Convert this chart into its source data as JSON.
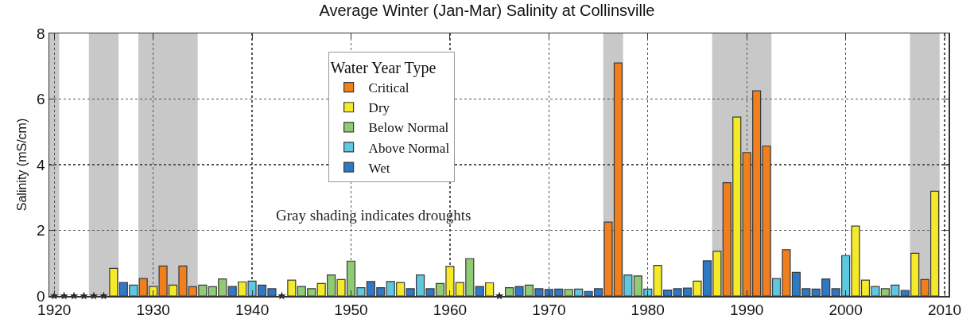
{
  "chart_data": {
    "type": "bar",
    "title": "Average Winter (Jan-Mar) Salinity at Collinsville",
    "ylabel": "Salinity (mS/cm)",
    "legend_title": "Water Year Type",
    "legend": "top",
    "grid": true,
    "xlim": [
      1919.5,
      2010.4
    ],
    "xticks": [
      1920,
      1930,
      1940,
      1950,
      1960,
      1970,
      1980,
      1990,
      2000,
      2010
    ],
    "ylim": [
      0,
      8
    ],
    "yticks": [
      0,
      2,
      4,
      6,
      8
    ],
    "annotations": [
      "Gray shading indicates droughts"
    ],
    "bands": [
      {
        "axis": "x",
        "from": 1919.5,
        "to": 1920.5,
        "color": "#c8c8c8"
      },
      {
        "axis": "x",
        "from": 1923.5,
        "to": 1926.5,
        "color": "#c8c8c8"
      },
      {
        "axis": "x",
        "from": 1928.5,
        "to": 1934.5,
        "color": "#c8c8c8"
      },
      {
        "axis": "x",
        "from": 1975.5,
        "to": 1977.5,
        "color": "#c8c8c8"
      },
      {
        "axis": "x",
        "from": 1986.5,
        "to": 1992.5,
        "color": "#c8c8c8"
      },
      {
        "axis": "x",
        "from": 2006.5,
        "to": 2009.5,
        "color": "#c8c8c8"
      }
    ],
    "series": [
      {
        "name": "Critical",
        "color": "#f07f1e",
        "x": [
          1929,
          1931,
          1933,
          1934,
          1976,
          1977,
          1988,
          1990,
          1991,
          1992,
          1994,
          2008
        ],
        "values": [
          0.53,
          0.91,
          0.91,
          0.28,
          2.25,
          7.1,
          3.45,
          4.37,
          6.25,
          4.57,
          1.41,
          0.5
        ]
      },
      {
        "name": "Dry",
        "color": "#f5ea28",
        "x": [
          1926,
          1930,
          1932,
          1939,
          1944,
          1947,
          1949,
          1955,
          1960,
          1961,
          1964,
          1981,
          1985,
          1987,
          1989,
          2001,
          2002,
          2007,
          2009
        ],
        "values": [
          0.84,
          0.29,
          0.33,
          0.43,
          0.48,
          0.38,
          0.5,
          0.41,
          0.9,
          0.41,
          0.4,
          0.93,
          0.45,
          1.36,
          5.45,
          2.13,
          0.48,
          1.3,
          3.19
        ]
      },
      {
        "name": "Below Normal",
        "color": "#8fcb72",
        "x": [
          1935,
          1936,
          1937,
          1945,
          1946,
          1948,
          1950,
          1959,
          1962,
          1966,
          1968,
          1972,
          1979,
          2004
        ],
        "values": [
          0.33,
          0.28,
          0.52,
          0.29,
          0.22,
          0.64,
          1.06,
          0.38,
          1.14,
          0.25,
          0.33,
          0.2,
          0.61,
          0.22
        ]
      },
      {
        "name": "Above Normal",
        "color": "#5ec8e0",
        "x": [
          1928,
          1940,
          1951,
          1954,
          1957,
          1973,
          1978,
          1980,
          1993,
          2000,
          2003,
          2005
        ],
        "values": [
          0.33,
          0.45,
          0.25,
          0.44,
          0.64,
          0.21,
          0.64,
          0.21,
          0.53,
          1.23,
          0.29,
          0.33
        ]
      },
      {
        "name": "Wet",
        "color": "#2f78c4",
        "x": [
          1927,
          1938,
          1941,
          1942,
          1952,
          1953,
          1956,
          1958,
          1963,
          1967,
          1969,
          1970,
          1971,
          1974,
          1975,
          1982,
          1983,
          1984,
          1986,
          1995,
          1996,
          1997,
          1998,
          1999,
          2006
        ],
        "values": [
          0.41,
          0.29,
          0.33,
          0.22,
          0.44,
          0.25,
          0.22,
          0.22,
          0.29,
          0.29,
          0.22,
          0.2,
          0.21,
          0.14,
          0.22,
          0.18,
          0.22,
          0.24,
          1.07,
          0.72,
          0.22,
          0.21,
          0.52,
          0.22,
          0.17
        ]
      },
      {
        "type": "scatter",
        "marker": "star",
        "color": "#222222",
        "x": [
          1920,
          1921,
          1922,
          1923,
          1924,
          1925,
          1943,
          1965
        ],
        "values": [
          0,
          0,
          0,
          0,
          0,
          0,
          0,
          0
        ]
      }
    ]
  }
}
